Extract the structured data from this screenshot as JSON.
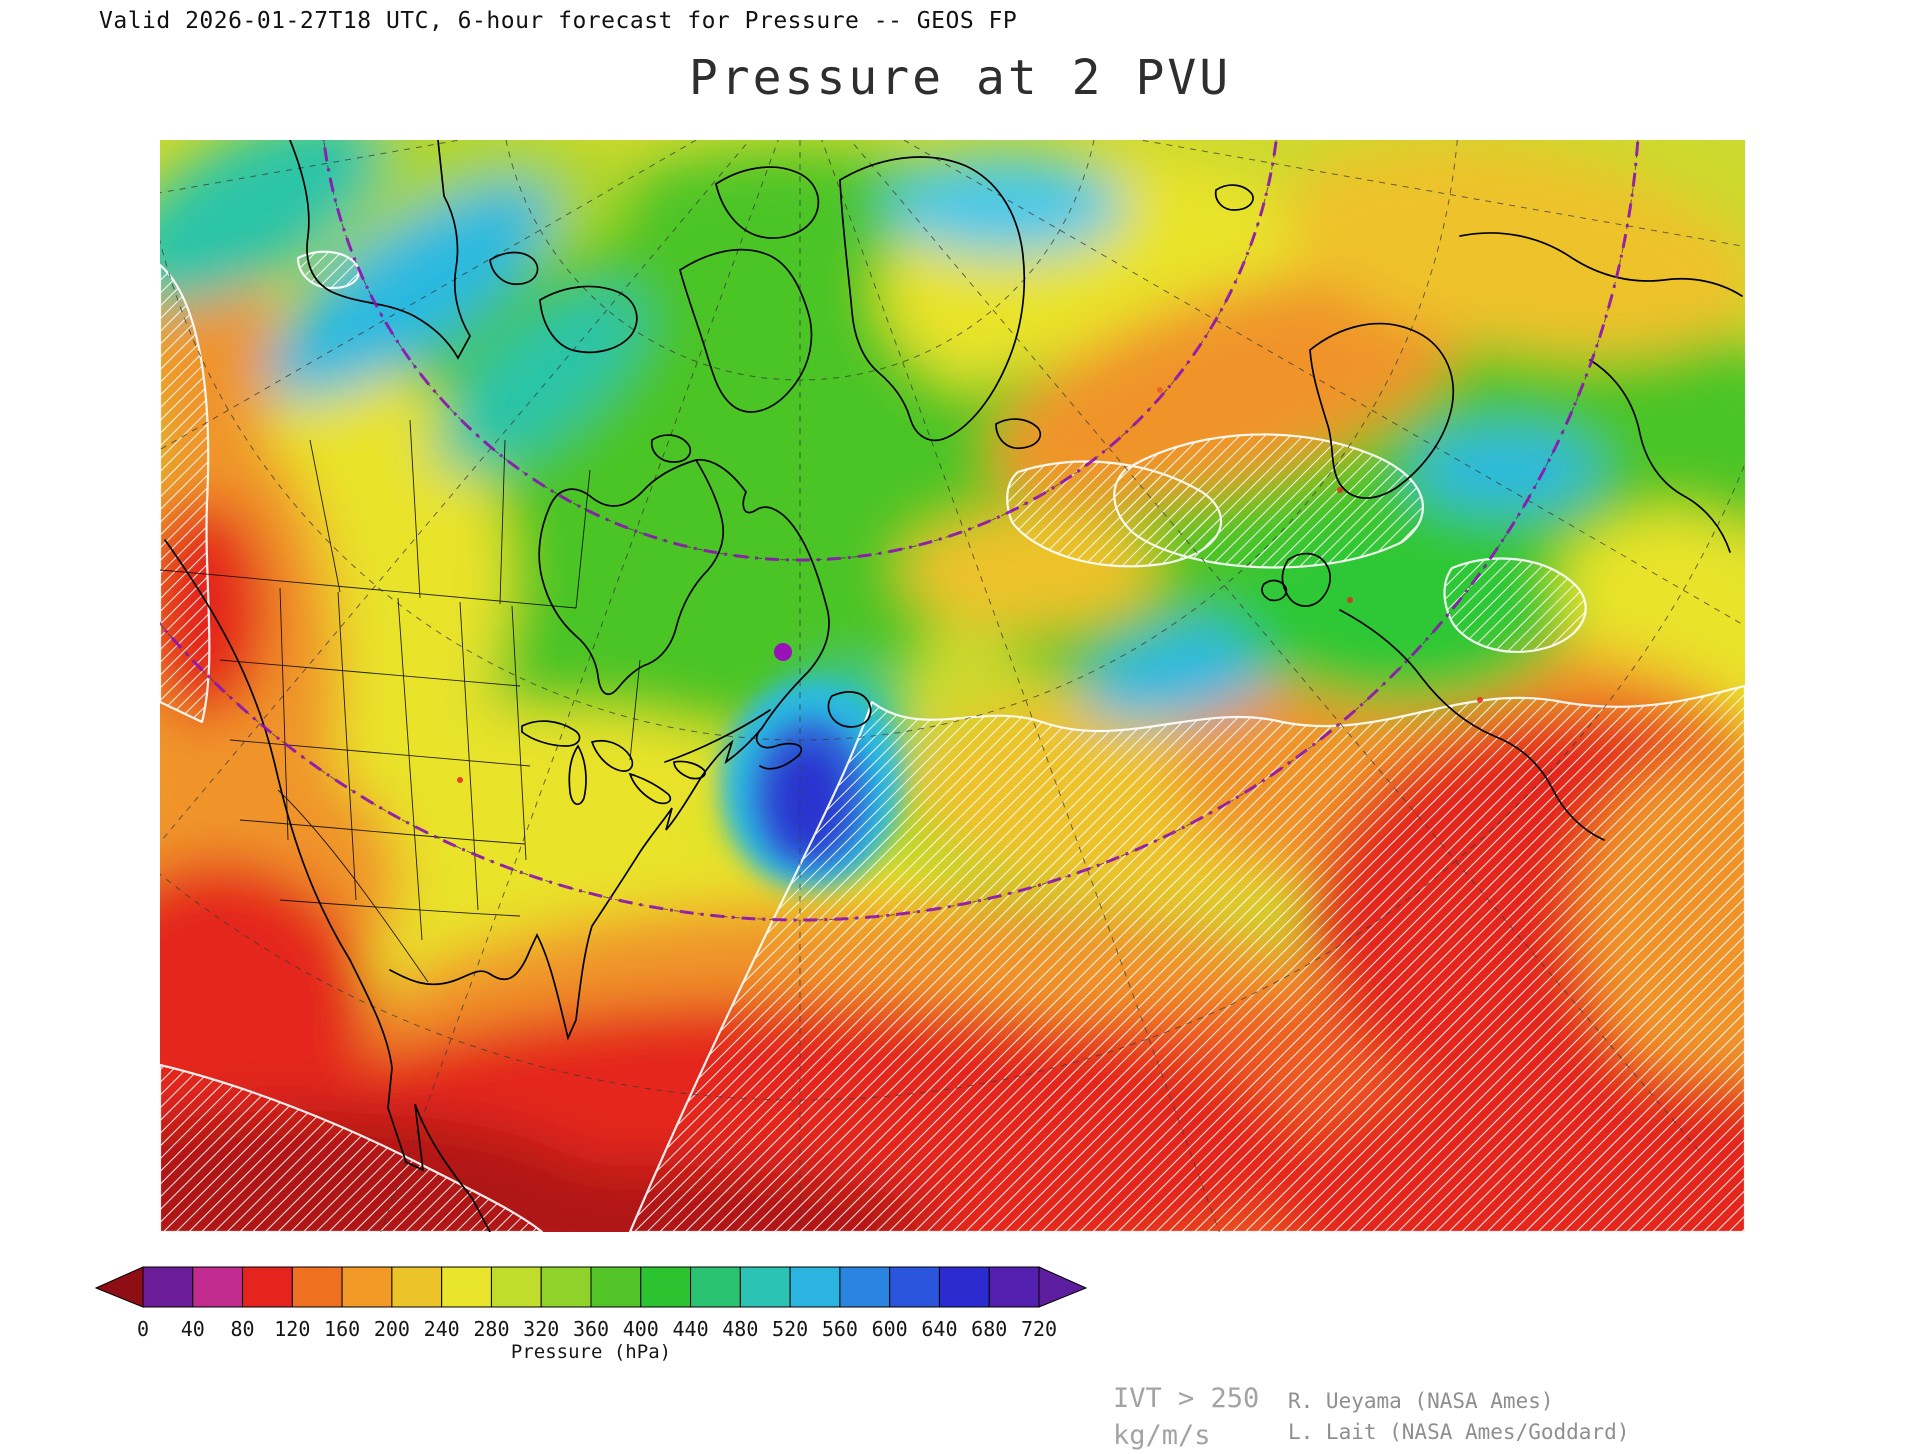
{
  "header": {
    "valid_line": "Valid 2026-01-27T18 UTC, 6-hour forecast for Pressure -- GEOS FP",
    "title": "Pressure at 2 PVU"
  },
  "colorbar": {
    "axis_label": "Pressure (hPa)",
    "tick_labels": [
      "0",
      "40",
      "80",
      "120",
      "160",
      "200",
      "240",
      "280",
      "320",
      "360",
      "400",
      "440",
      "480",
      "520",
      "560",
      "600",
      "640",
      "680",
      "720"
    ],
    "segment_colors": [
      "#6a1d96",
      "#c12a8e",
      "#e52420",
      "#ef7021",
      "#f29a26",
      "#edc32a",
      "#e9e52c",
      "#bfdd2a",
      "#8ed22a",
      "#52c427",
      "#2bc32f",
      "#2ac371",
      "#2bc4b4",
      "#2cb4e0",
      "#2b84e0",
      "#2b55dd",
      "#2b2bd0",
      "#521fae"
    ],
    "left_arrow_color": "#8f0d14",
    "right_arrow_color": "#5c1d9e"
  },
  "annotations": {
    "ivt_line1": "IVT > 250",
    "ivt_line2": "kg/m/s",
    "credit_line1": "R. Ueyama (NASA Ames)",
    "credit_line2": "L. Lait (NASA Ames/Goddard)"
  },
  "map": {
    "palette": {
      "base": "#cdd92e",
      "yellow": "#e9e32c",
      "yellow_green": "#aad52a",
      "green": "#4cc426",
      "bright_green": "#2ec736",
      "teal": "#2bc4a8",
      "cyan": "#2cb9e0",
      "sky": "#49c8e8",
      "blue": "#2f62d8",
      "deep_blue": "#2a36cf",
      "amber": "#eec22a",
      "orange": "#f0942b",
      "orange_red": "#ee5c22",
      "red": "#e4271f",
      "dark_red": "#b01212",
      "grid": "#3a3a3a",
      "latitude_circle": "#8d14b4",
      "coastline": "#000000",
      "hatch": "#ffffff",
      "marker": "#9912b8"
    }
  }
}
